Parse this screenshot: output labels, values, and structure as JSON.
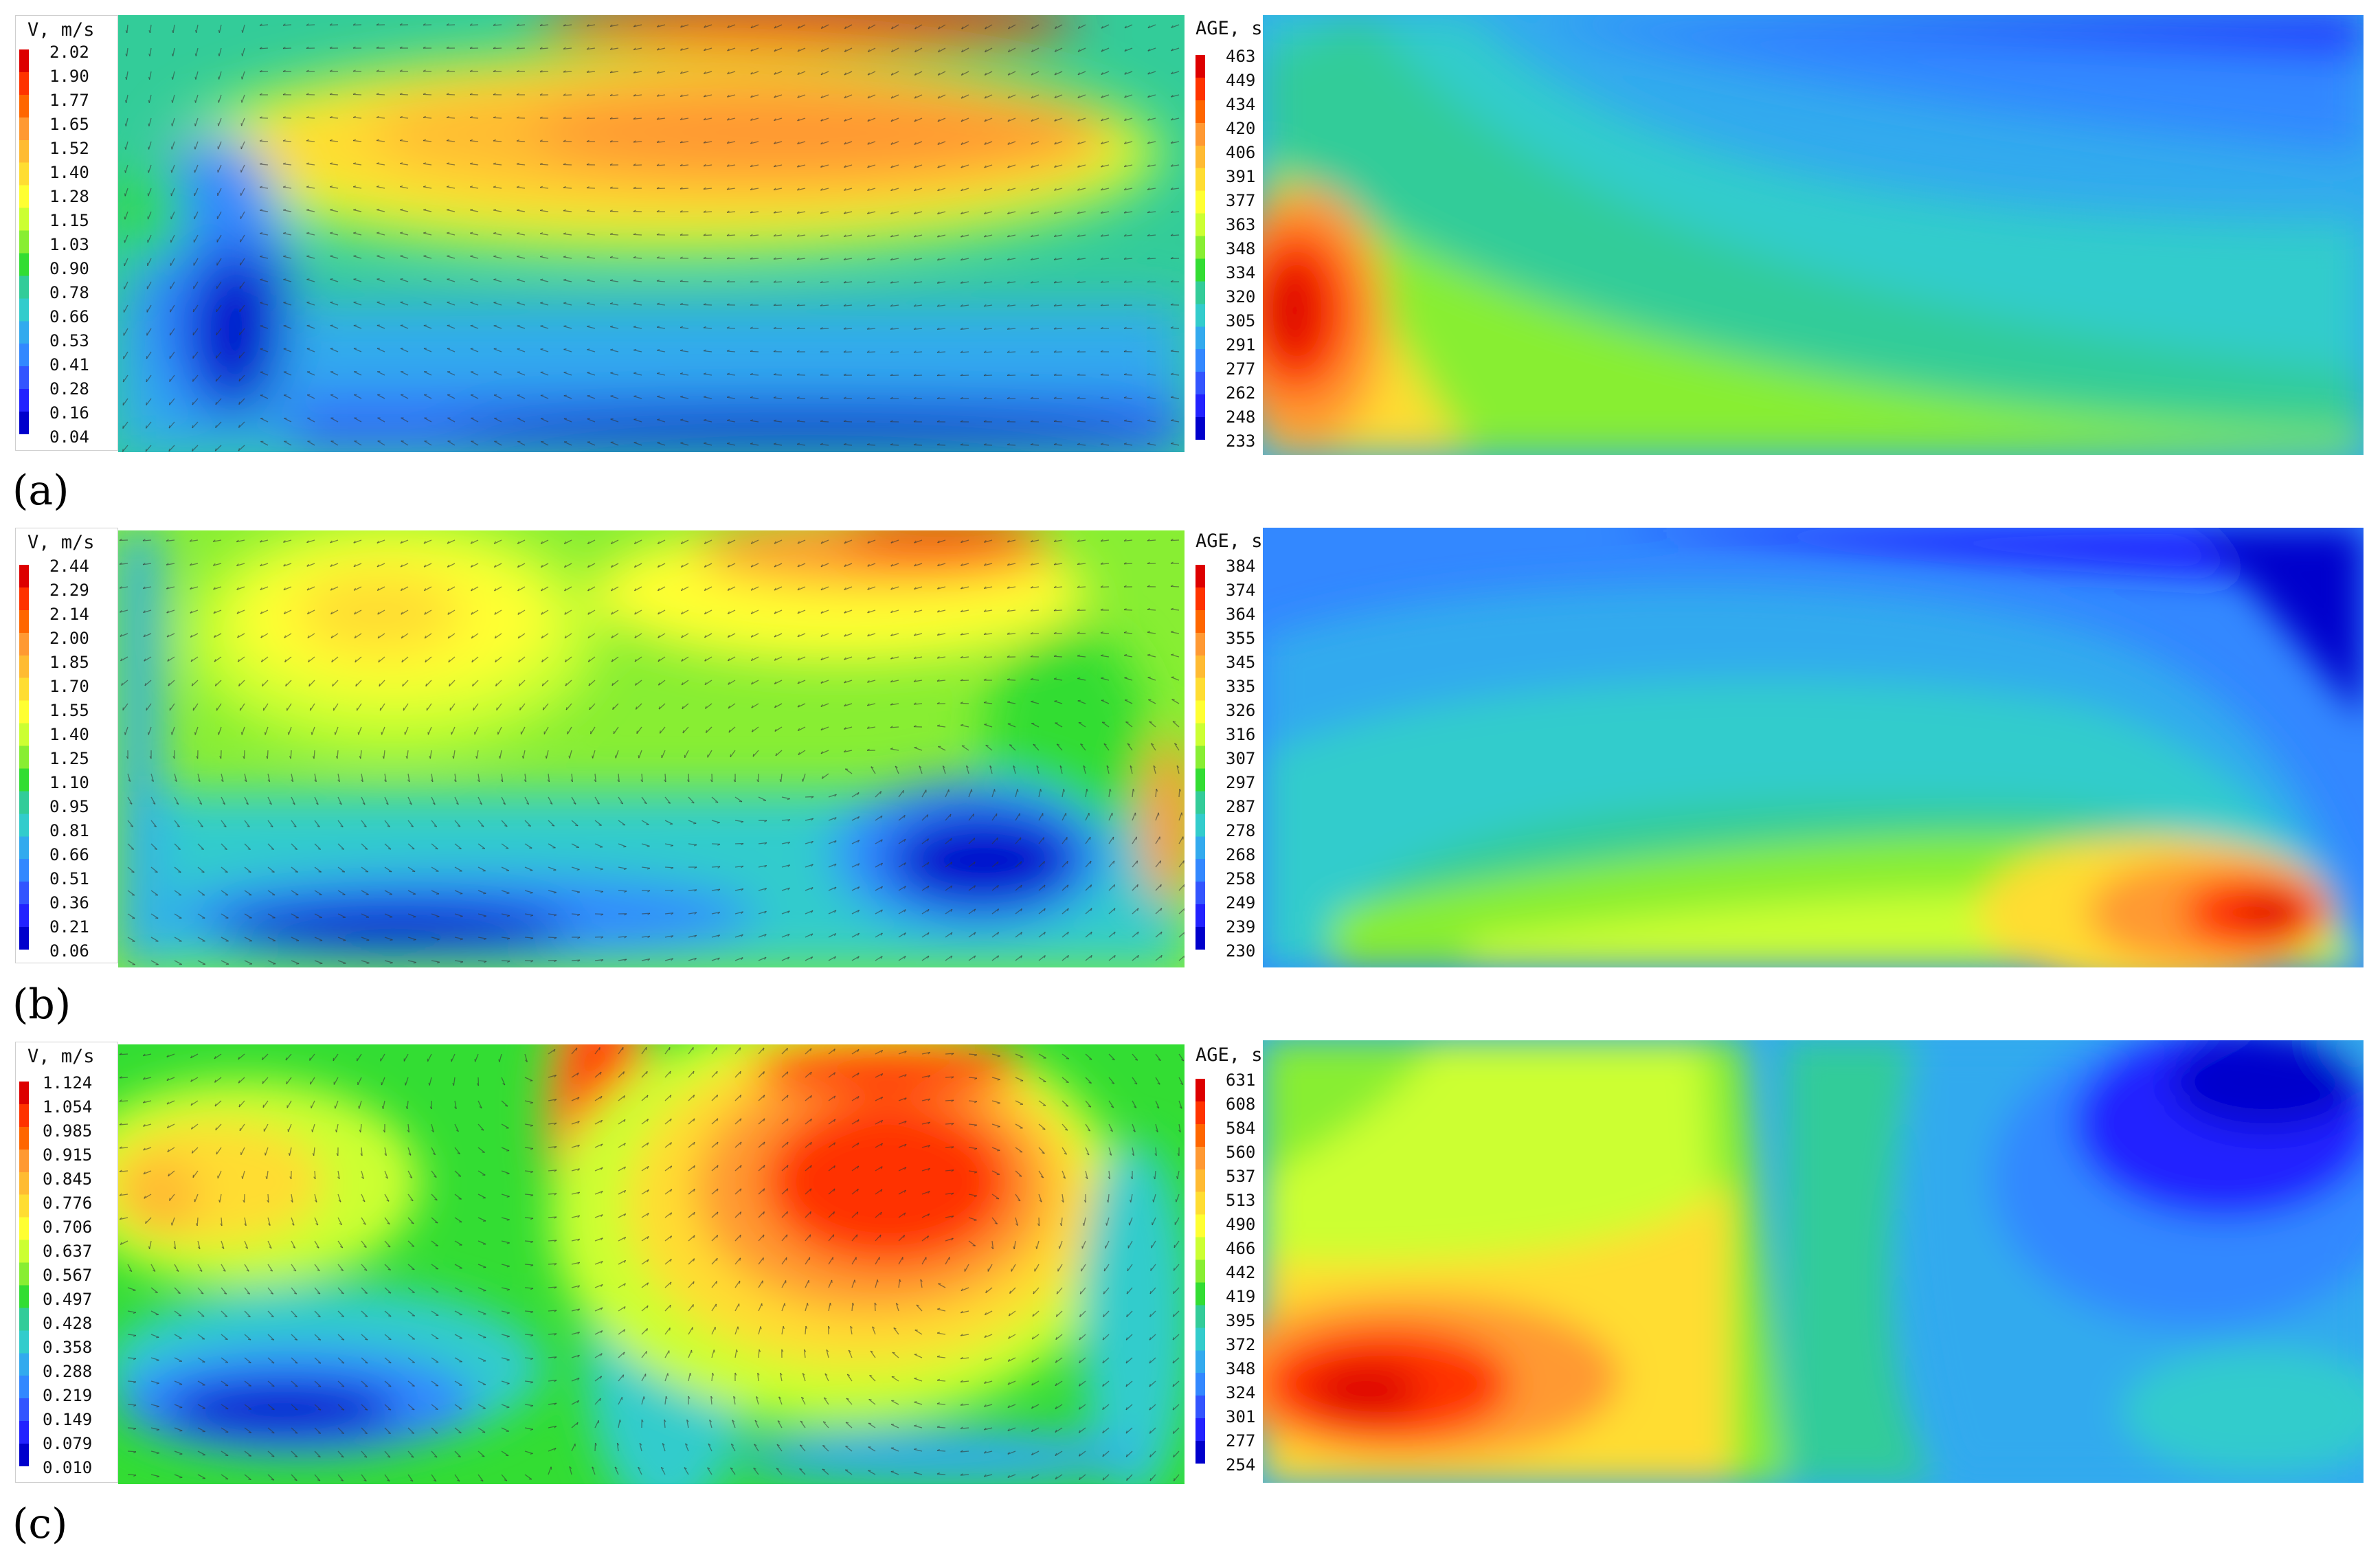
{
  "rows": [
    {
      "label": "(a)",
      "velocity": {
        "title": "V, m/s",
        "ticks": [
          "2.02",
          "1.90",
          "1.77",
          "1.65",
          "1.52",
          "1.40",
          "1.28",
          "1.15",
          "1.03",
          "0.90",
          "0.78",
          "0.66",
          "0.53",
          "0.41",
          "0.28",
          "0.16",
          "0.04"
        ]
      },
      "age": {
        "title": "AGE, s",
        "ticks": [
          "463",
          "449",
          "434",
          "420",
          "406",
          "391",
          "377",
          "363",
          "348",
          "334",
          "320",
          "305",
          "291",
          "277",
          "262",
          "248",
          "233"
        ]
      }
    },
    {
      "label": "(b)",
      "velocity": {
        "title": "V, m/s",
        "ticks": [
          "2.44",
          "2.29",
          "2.14",
          "2.00",
          "1.85",
          "1.70",
          "1.55",
          "1.40",
          "1.25",
          "1.10",
          "0.95",
          "0.81",
          "0.66",
          "0.51",
          "0.36",
          "0.21",
          "0.06"
        ]
      },
      "age": {
        "title": "AGE, s",
        "ticks": [
          "384",
          "374",
          "364",
          "355",
          "345",
          "335",
          "326",
          "316",
          "307",
          "297",
          "287",
          "278",
          "268",
          "258",
          "249",
          "239",
          "230"
        ]
      }
    },
    {
      "label": "(c)",
      "velocity": {
        "title": "V, m/s",
        "ticks": [
          "1.124",
          "1.054",
          "0.985",
          "0.915",
          "0.845",
          "0.776",
          "0.706",
          "0.637",
          "0.567",
          "0.497",
          "0.428",
          "0.358",
          "0.288",
          "0.219",
          "0.149",
          "0.079",
          "0.010"
        ]
      },
      "age": {
        "title": "AGE, s",
        "ticks": [
          "631",
          "608",
          "584",
          "560",
          "537",
          "513",
          "490",
          "466",
          "442",
          "419",
          "395",
          "372",
          "348",
          "324",
          "301",
          "277",
          "254"
        ]
      }
    }
  ],
  "colormap": [
    "#dd0000",
    "#ff3300",
    "#ff6600",
    "#ff9933",
    "#ffbb33",
    "#ffdd33",
    "#ffff33",
    "#ccff33",
    "#88ee33",
    "#33dd33",
    "#33cc99",
    "#33cccc",
    "#33aaee",
    "#3388ff",
    "#3355ff",
    "#2222ff",
    "#0000cc"
  ],
  "chart_data": [
    {
      "type": "heatmap",
      "panel": "(a) velocity",
      "legend_title": "V, m/s",
      "scale_max": 2.02,
      "scale_min": 0.04,
      "description_values": "contour map of velocity magnitude with vector arrows"
    },
    {
      "type": "heatmap",
      "panel": "(a) age",
      "legend_title": "AGE, s",
      "scale_max": 463,
      "scale_min": 233
    },
    {
      "type": "heatmap",
      "panel": "(b) velocity",
      "legend_title": "V, m/s",
      "scale_max": 2.44,
      "scale_min": 0.06
    },
    {
      "type": "heatmap",
      "panel": "(b) age",
      "legend_title": "AGE, s",
      "scale_max": 384,
      "scale_min": 230
    },
    {
      "type": "heatmap",
      "panel": "(c) velocity",
      "legend_title": "V, m/s",
      "scale_max": 1.124,
      "scale_min": 0.01
    },
    {
      "type": "heatmap",
      "panel": "(c) age",
      "legend_title": "AGE, s",
      "scale_max": 631,
      "scale_min": 254
    }
  ]
}
